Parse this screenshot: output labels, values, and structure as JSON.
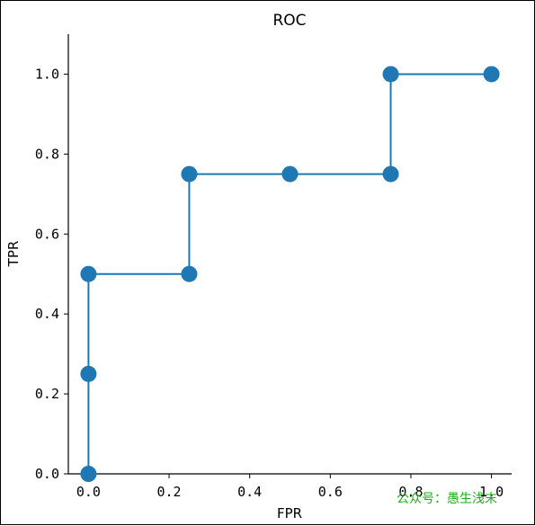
{
  "chart_data": {
    "type": "line",
    "title": "ROC",
    "xlabel": "FPR",
    "ylabel": "TPR",
    "xlim": [
      -0.05,
      1.05
    ],
    "ylim": [
      0.0,
      1.1
    ],
    "x_ticks": [
      "0.0",
      "0.2",
      "0.4",
      "0.6",
      "0.8",
      "1.0"
    ],
    "y_ticks": [
      "0.0",
      "0.2",
      "0.4",
      "0.6",
      "0.8",
      "1.0"
    ],
    "grid": false,
    "series": [
      {
        "color": "#1f77b4",
        "x": [
          0.0,
          0.0,
          0.0,
          0.25,
          0.25,
          0.5,
          0.75,
          0.75,
          1.0
        ],
        "y": [
          0.0,
          0.25,
          0.5,
          0.5,
          0.75,
          0.75,
          0.75,
          1.0,
          1.0
        ]
      }
    ]
  },
  "watermark": {
    "text": "公众号：愚生浅末",
    "color": "#1aad19"
  }
}
